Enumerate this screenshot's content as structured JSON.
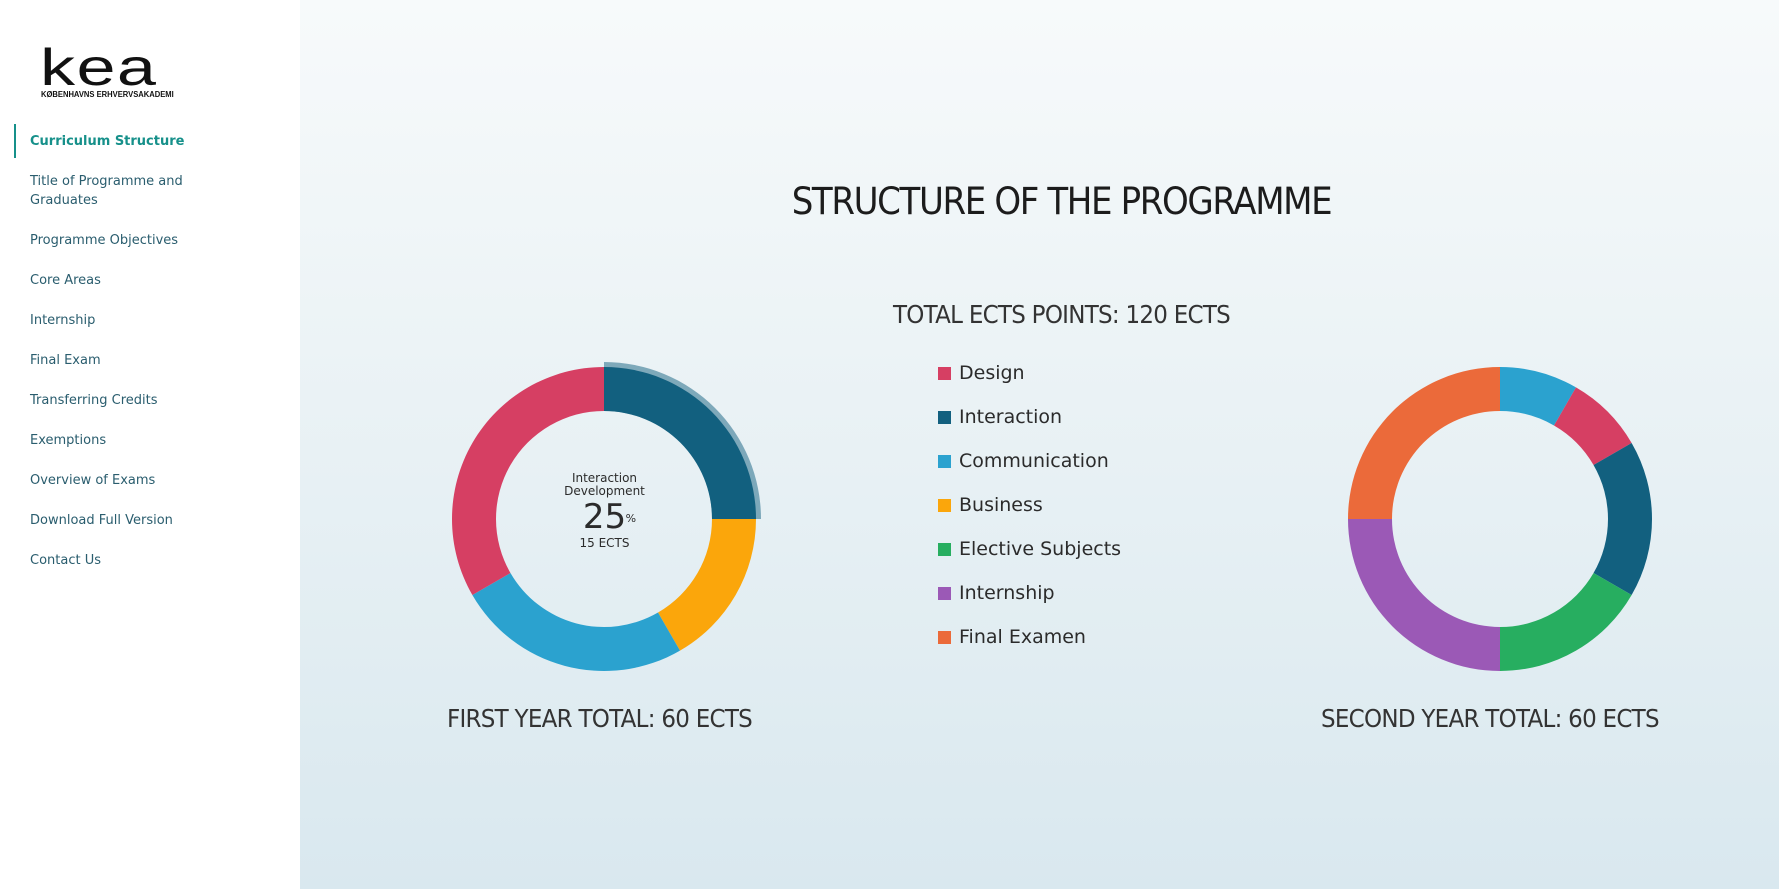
{
  "logo": {
    "mark": "kea",
    "subtitle": "KØBENHAVNS ERHVERVSAKADEMI"
  },
  "sidebar": {
    "items": [
      {
        "label": "Curriculum Structure",
        "active": true
      },
      {
        "label": "Title of Programme and Graduates",
        "active": false
      },
      {
        "label": "Programme Objectives",
        "active": false
      },
      {
        "label": "Core Areas",
        "active": false
      },
      {
        "label": "Internship",
        "active": false
      },
      {
        "label": "Final Exam",
        "active": false
      },
      {
        "label": "Transferring Credits",
        "active": false
      },
      {
        "label": "Exemptions",
        "active": false
      },
      {
        "label": "Overview of Exams",
        "active": false
      },
      {
        "label": "Download Full Version",
        "active": false
      },
      {
        "label": "Contact Us",
        "active": false
      }
    ]
  },
  "main": {
    "title": "STRUCTURE OF THE PROGRAMME",
    "total_points": "TOTAL ECTS POINTS: 120 ECTS",
    "legend": [
      {
        "label": "Design",
        "color": "#d63f63"
      },
      {
        "label": "Interaction",
        "color": "#12607f"
      },
      {
        "label": "Communication",
        "color": "#2ba2cf"
      },
      {
        "label": "Business",
        "color": "#fba60b"
      },
      {
        "label": "Elective Subjects",
        "color": "#27ae60"
      },
      {
        "label": "Internship",
        "color": "#9b59b6"
      },
      {
        "label": "Final Examen",
        "color": "#eb6a3a"
      }
    ],
    "first_year_total": "FIRST YEAR TOTAL: 60 ECTS",
    "second_year_total": "SECOND YEAR TOTAL: 60 ECTS",
    "center": {
      "title_line1": "Interaction",
      "title_line2": "Development",
      "value": "25",
      "unit": "%",
      "ects": "15 ECTS"
    }
  },
  "chart_data": [
    {
      "type": "pie",
      "donut": true,
      "highlighted": "Interaction",
      "categories": [
        "Interaction",
        "Business",
        "Communication",
        "Design"
      ],
      "values": [
        15,
        10,
        15,
        20
      ],
      "colors": [
        "#12607f",
        "#fba60b",
        "#2ba2cf",
        "#d63f63"
      ]
    },
    {
      "type": "pie",
      "donut": true,
      "categories": [
        "Communication",
        "Design",
        "Interaction",
        "Elective Subjects",
        "Internship",
        "Final Examen"
      ],
      "values": [
        5,
        5,
        10,
        10,
        15,
        15
      ],
      "colors": [
        "#2ba2cf",
        "#d63f63",
        "#12607f",
        "#27ae60",
        "#9b59b6",
        "#eb6a3a"
      ]
    }
  ]
}
